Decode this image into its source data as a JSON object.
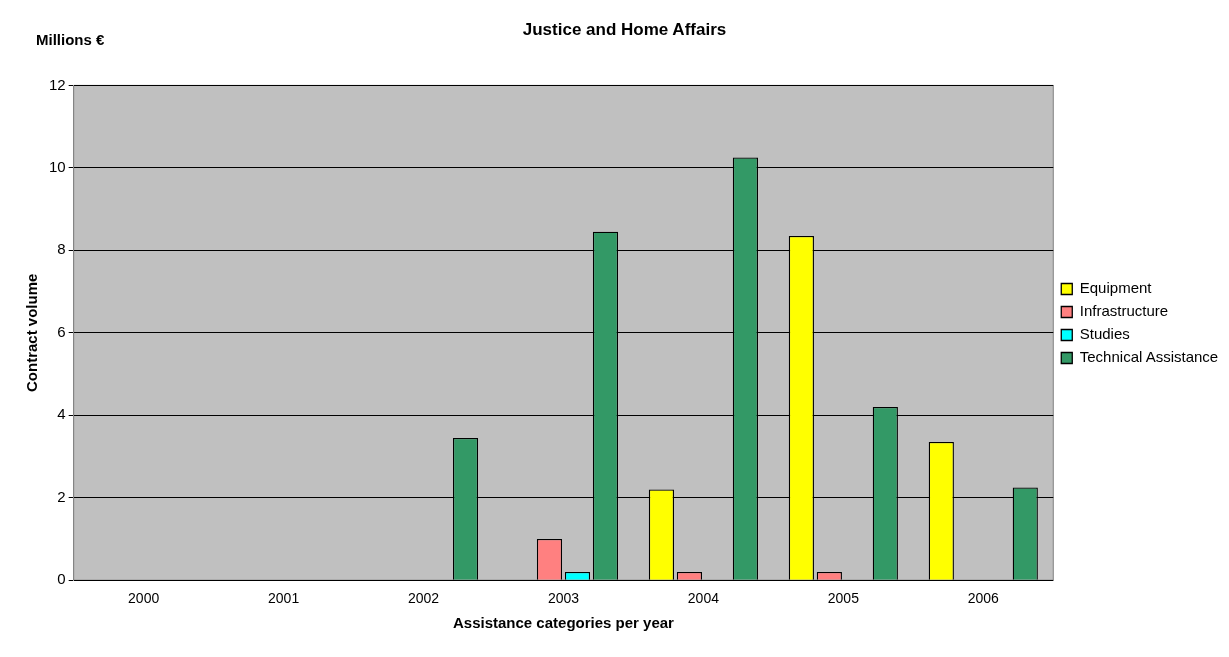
{
  "chart_data": {
    "type": "bar",
    "title": "Justice and Home Affairs",
    "xlabel": "Assistance categories per year",
    "ylabel": "Contract volume",
    "annotations": [
      "Millions €"
    ],
    "categories": [
      "2000",
      "2001",
      "2002",
      "2003",
      "2004",
      "2005",
      "2006"
    ],
    "series": [
      {
        "name": "Equipment",
        "color": "#ffff00",
        "values": [
          0,
          0,
          0,
          0,
          2.2,
          8.35,
          3.35
        ]
      },
      {
        "name": "Infrastructure",
        "color": "#ff8080",
        "values": [
          0,
          0,
          0,
          1.0,
          0.2,
          0.2,
          0
        ]
      },
      {
        "name": "Studies",
        "color": "#00ffff",
        "values": [
          0,
          0,
          0,
          0.2,
          0,
          0,
          0
        ]
      },
      {
        "name": "Technical Assistance",
        "color": "#339966",
        "values": [
          0,
          0,
          3.45,
          8.45,
          10.25,
          4.2,
          2.25
        ]
      }
    ],
    "ylim": [
      0,
      12
    ],
    "yticks": [
      0,
      2,
      4,
      6,
      8,
      10,
      12
    ],
    "grid": "y",
    "legend": "right"
  }
}
